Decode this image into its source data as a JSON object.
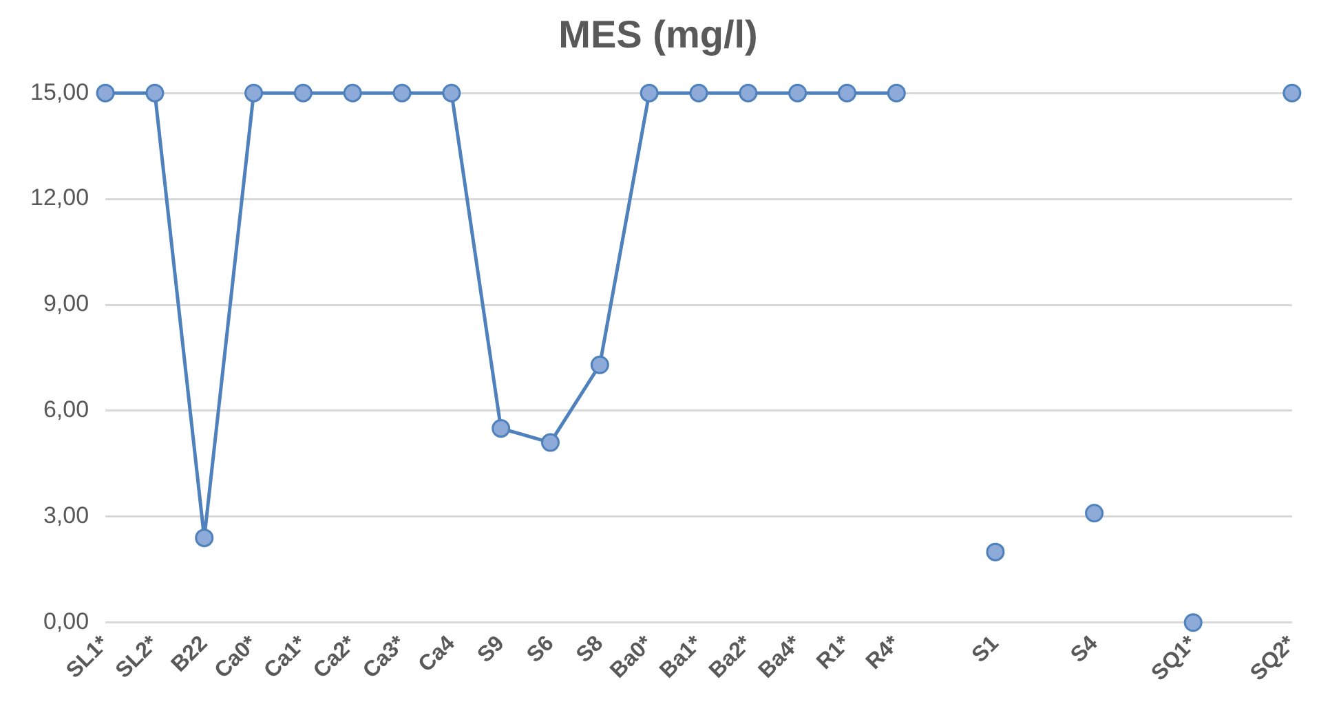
{
  "chart_data": {
    "type": "line",
    "title": "MES (mg/l)",
    "categories": [
      "SL1*",
      "SL2*",
      "B22",
      "Ca0*",
      "Ca1*",
      "Ca2*",
      "Ca3*",
      "Ca4",
      "S9",
      "S6",
      "S8",
      "Ba0*",
      "Ba1*",
      "Ba2*",
      "Ba4*",
      "R1*",
      "R4*",
      null,
      "S1",
      null,
      "S4",
      null,
      "SQ1*",
      null,
      "SQ2*"
    ],
    "series": [
      {
        "color": "#4f81bd",
        "values": [
          15,
          15,
          2.4,
          15,
          15,
          15,
          15,
          15,
          5.5,
          5.1,
          7.3,
          15,
          15,
          15,
          15,
          15,
          15,
          null,
          2.0,
          null,
          3.1,
          null,
          0,
          null,
          15
        ]
      }
    ],
    "ylim": [
      0,
      15
    ],
    "yticks": [
      {
        "value": 0,
        "label": "0,00"
      },
      {
        "value": 3,
        "label": "3,00"
      },
      {
        "value": 6,
        "label": "6,00"
      },
      {
        "value": 9,
        "label": "9,00"
      },
      {
        "value": 12,
        "label": "12,00"
      },
      {
        "value": 15,
        "label": "15,00"
      }
    ],
    "grid": "y",
    "legend": false,
    "marker": "circle",
    "line_style": "solid"
  }
}
